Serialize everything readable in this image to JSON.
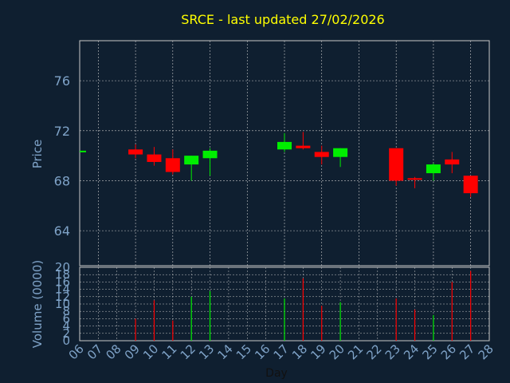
{
  "chart_data": [
    {
      "type": "candlestick",
      "title": "SRCE - last updated 27/02/2026",
      "ylabel": "Price",
      "ylim": [
        61.2,
        79.2
      ],
      "yticks": [
        64,
        68,
        72,
        76
      ],
      "up_color": "#00ee00",
      "down_color": "#ff0000",
      "grid": true,
      "days": [
        "06",
        "07",
        "08",
        "09",
        "10",
        "11",
        "12",
        "13",
        "14",
        "15",
        "16",
        "17",
        "18",
        "19",
        "20",
        "21",
        "22",
        "23",
        "24",
        "25",
        "26",
        "27",
        "28"
      ],
      "candles": [
        {
          "day": "06",
          "open": 70.4,
          "high": 70.4,
          "low": 70.4,
          "close": 70.4
        },
        {
          "day": "09",
          "open": 70.5,
          "high": 70.9,
          "low": 69.8,
          "close": 70.1
        },
        {
          "day": "10",
          "open": 70.1,
          "high": 70.7,
          "low": 69.2,
          "close": 69.5
        },
        {
          "day": "11",
          "open": 69.8,
          "high": 70.5,
          "low": 68.5,
          "close": 68.7
        },
        {
          "day": "12",
          "open": 69.3,
          "high": 70.0,
          "low": 68.0,
          "close": 70.0
        },
        {
          "day": "13",
          "open": 69.8,
          "high": 70.6,
          "low": 68.4,
          "close": 70.4
        },
        {
          "day": "17",
          "open": 70.5,
          "high": 71.8,
          "low": 70.3,
          "close": 71.1
        },
        {
          "day": "18",
          "open": 70.8,
          "high": 71.9,
          "low": 70.5,
          "close": 70.6
        },
        {
          "day": "19",
          "open": 70.3,
          "high": 70.8,
          "low": 69.3,
          "close": 69.9
        },
        {
          "day": "20",
          "open": 69.9,
          "high": 70.6,
          "low": 69.1,
          "close": 70.6
        },
        {
          "day": "23",
          "open": 70.6,
          "high": 70.6,
          "low": 67.6,
          "close": 68.0
        },
        {
          "day": "24",
          "open": 68.2,
          "high": 68.3,
          "low": 67.4,
          "close": 68.1
        },
        {
          "day": "25",
          "open": 68.6,
          "high": 69.4,
          "low": 68.0,
          "close": 69.3
        },
        {
          "day": "26",
          "open": 69.7,
          "high": 70.3,
          "low": 68.6,
          "close": 69.3
        },
        {
          "day": "27",
          "open": 68.4,
          "high": 68.4,
          "low": 66.7,
          "close": 67.0
        }
      ]
    },
    {
      "type": "bar",
      "xlabel": "Day",
      "ylabel": "Volume (0000)",
      "ylim": [
        0,
        20
      ],
      "yticks": [
        0,
        2,
        4,
        6,
        8,
        10,
        12,
        14,
        16,
        18,
        20
      ],
      "categories": [
        "09",
        "10",
        "11",
        "12",
        "13",
        "17",
        "18",
        "19",
        "20",
        "23",
        "24",
        "25",
        "26",
        "27"
      ],
      "values": [
        6,
        11,
        5.5,
        12,
        13.5,
        11.5,
        17,
        9.5,
        10.5,
        11.5,
        8.5,
        7,
        16,
        19
      ],
      "colors": [
        "#ff0000",
        "#ff0000",
        "#ff0000",
        "#00ee00",
        "#00ee00",
        "#00ee00",
        "#ff0000",
        "#ff0000",
        "#00ee00",
        "#ff0000",
        "#ff0000",
        "#00ee00",
        "#ff0000",
        "#ff0000"
      ]
    }
  ]
}
